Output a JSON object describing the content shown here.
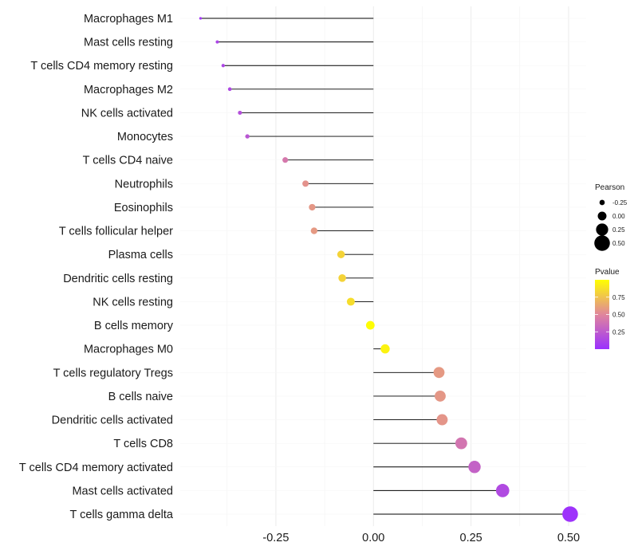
{
  "chart_data": {
    "type": "lollipop",
    "categories": [
      "Macrophages M1",
      "Mast cells resting",
      "T cells CD4 memory resting",
      "Macrophages M2",
      "NK cells activated",
      "Monocytes",
      "T cells CD4 naive",
      "Neutrophils",
      "Eosinophils",
      "T cells follicular helper",
      "Plasma cells",
      "Dendritic cells resting",
      "NK cells resting",
      "B cells memory",
      "Macrophages M0",
      "T cells regulatory  Tregs ",
      "B cells naive",
      "Dendritic cells activated",
      "T cells CD8",
      "T cells CD4 memory activated",
      "Mast cells activated",
      "T cells gamma delta"
    ],
    "pearson": [
      -0.443,
      -0.4,
      -0.385,
      -0.368,
      -0.342,
      -0.323,
      -0.226,
      -0.174,
      -0.157,
      -0.152,
      -0.083,
      -0.08,
      -0.058,
      -0.008,
      0.03,
      0.168,
      0.171,
      0.176,
      0.225,
      0.259,
      0.331,
      0.504
    ],
    "pvalue": [
      0.05,
      0.12,
      0.13,
      0.14,
      0.18,
      0.22,
      0.42,
      0.55,
      0.57,
      0.58,
      0.82,
      0.82,
      0.86,
      0.99,
      0.95,
      0.58,
      0.57,
      0.56,
      0.4,
      0.29,
      0.15,
      0.02
    ],
    "xlim": [
      -0.495,
      0.545
    ],
    "x_ticks": [
      -0.25,
      0.0,
      0.25,
      0.5
    ],
    "x_tick_labels": [
      "-0.25",
      "0.00",
      "0.25",
      "0.50"
    ],
    "xlabel": "",
    "ylabel": "",
    "legend_position": "right",
    "size_legend": {
      "title": "Pearson",
      "values": [
        -0.25,
        0.0,
        0.25,
        0.5
      ],
      "labels": [
        "-0.25",
        "0.00",
        "0.25",
        "0.50"
      ]
    },
    "color_legend": {
      "title": "Pvalue",
      "range": [
        0.0,
        1.0
      ],
      "ticks": [
        0.25,
        0.5,
        0.75
      ],
      "tick_labels": [
        "0.25",
        "0.50",
        "0.75"
      ],
      "low_color": "#9b30ff",
      "mid_color": "#e0869c",
      "high_color": "#ffff00"
    },
    "segment_color": "#000000"
  }
}
